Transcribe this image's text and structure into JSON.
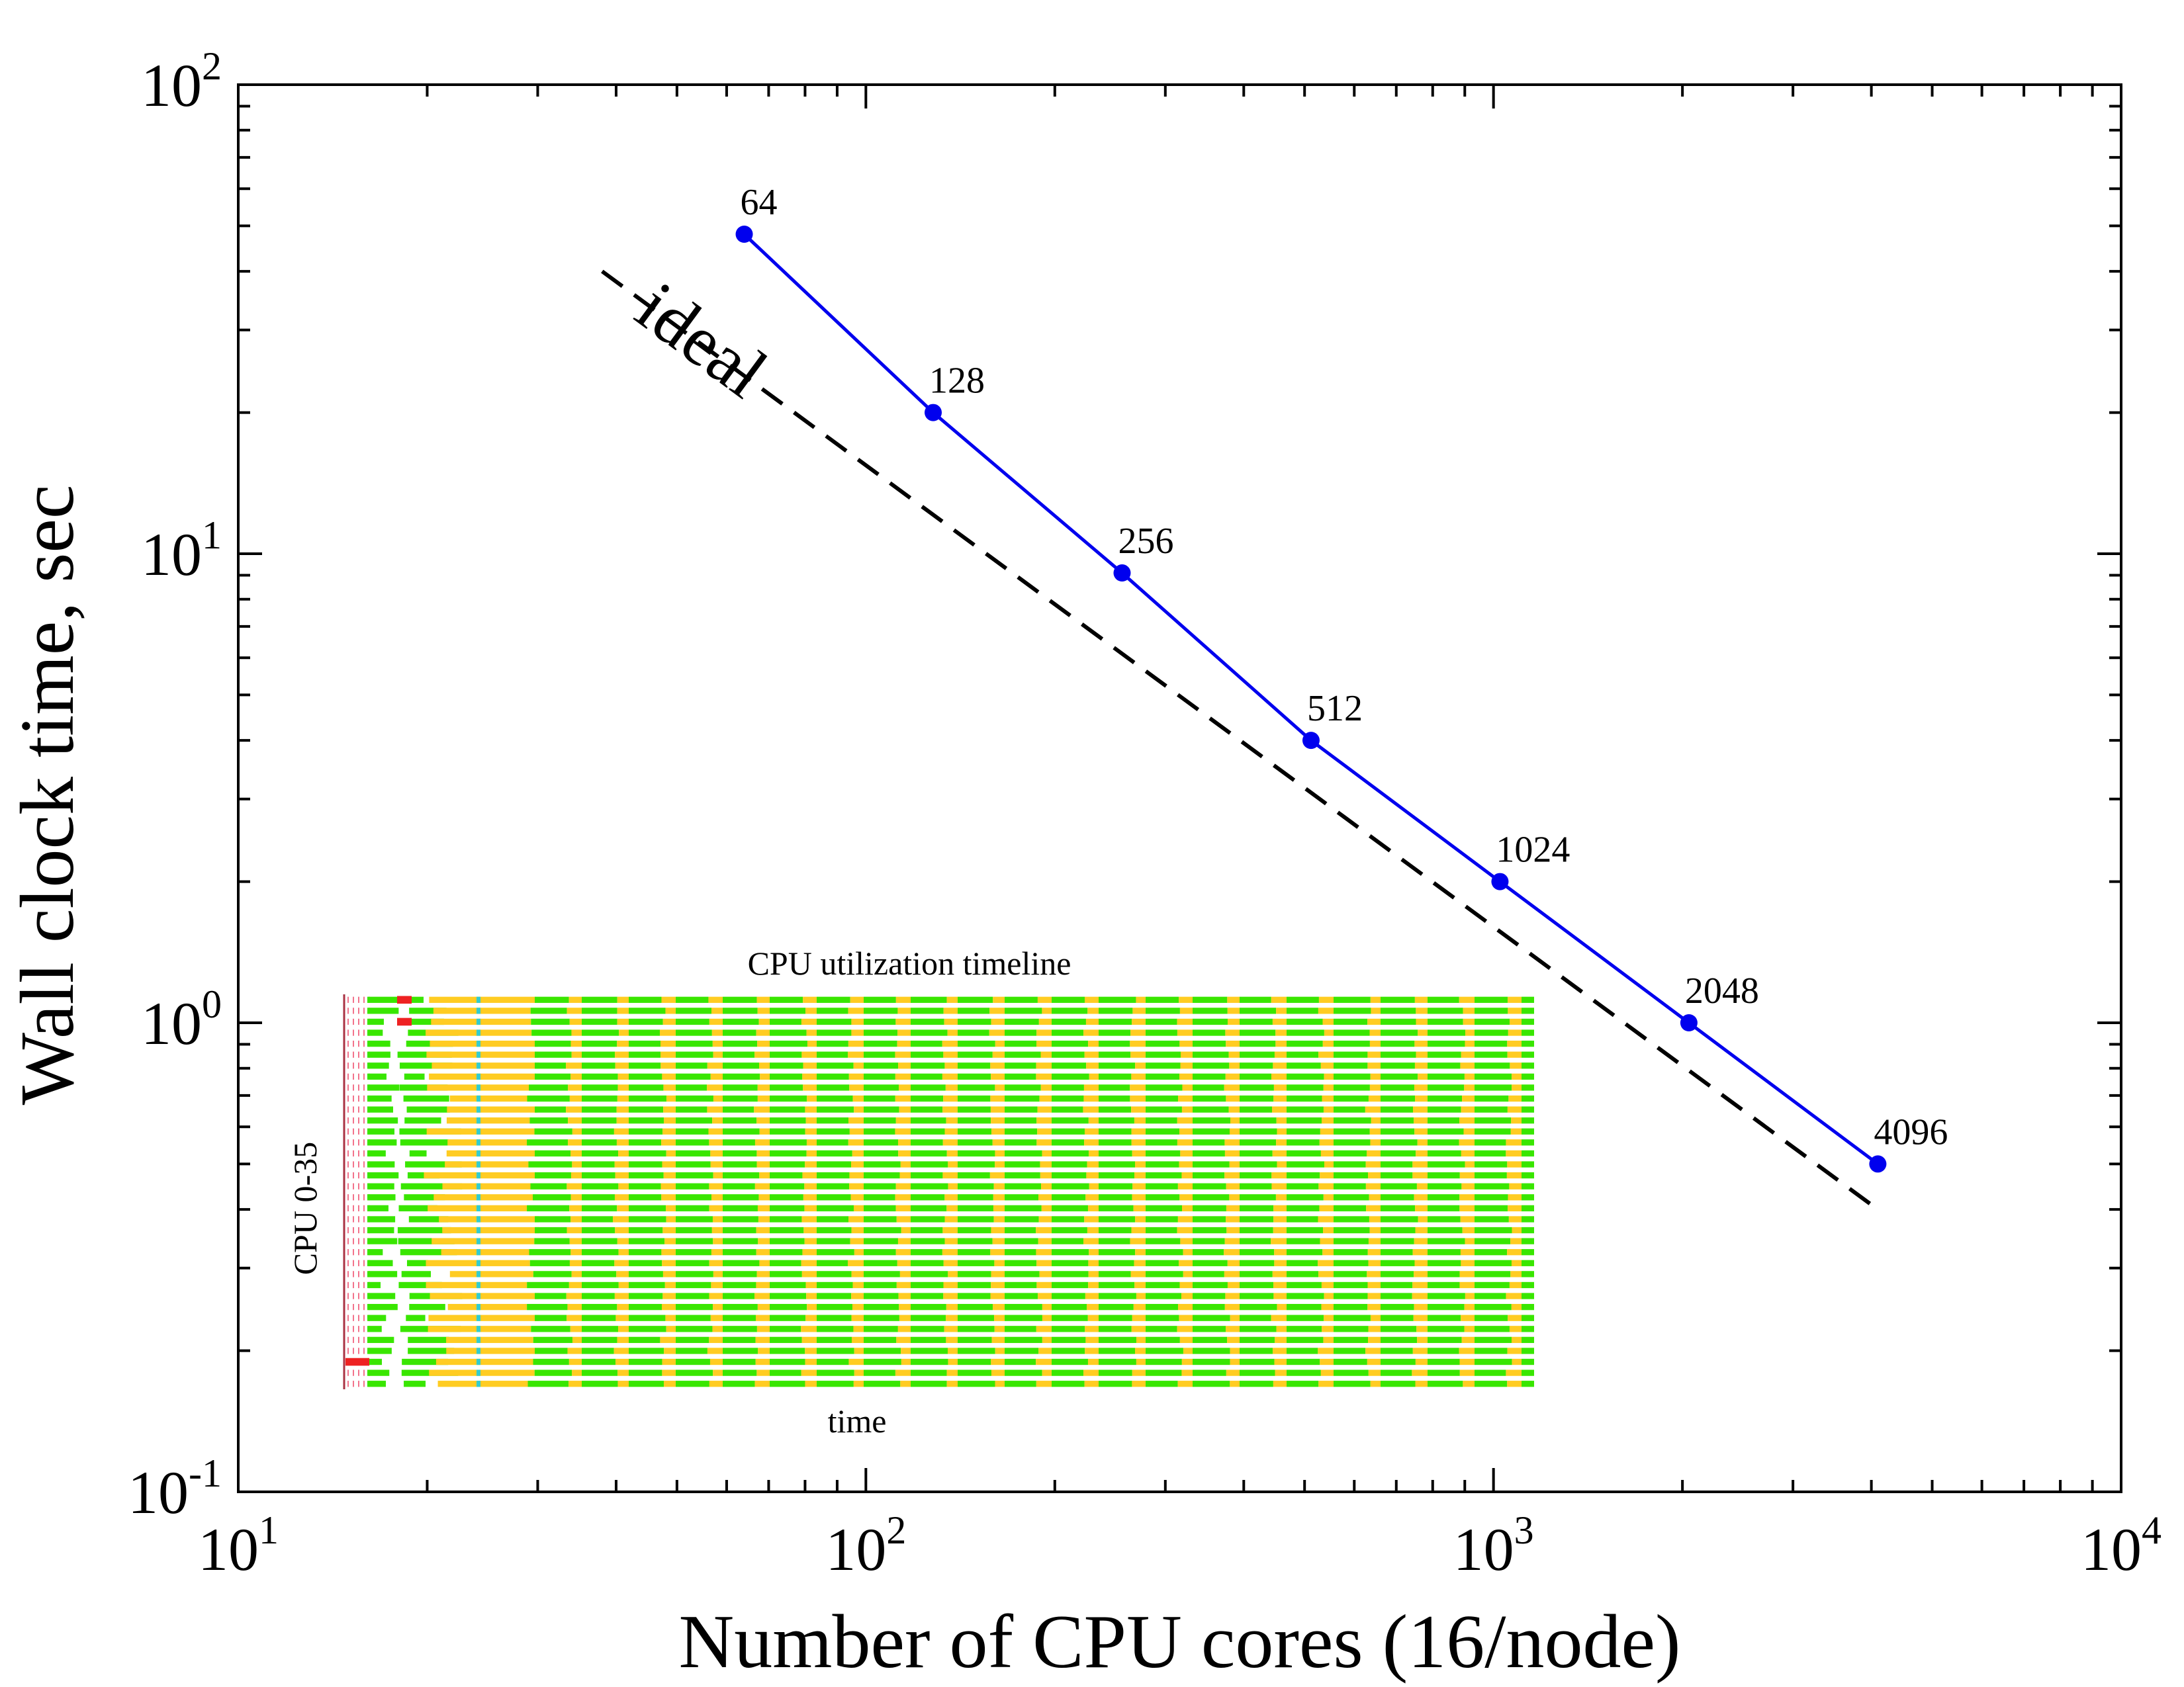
{
  "chart_data": {
    "type": "line",
    "xlabel": "Number of CPU cores (16/node)",
    "ylabel": "Wall clock time, sec",
    "xscale": "log",
    "yscale": "log",
    "xlim": [
      10,
      10000
    ],
    "ylim": [
      0.1,
      100
    ],
    "x_tick_labels": [
      {
        "value": 10,
        "base": "10",
        "exp": "1"
      },
      {
        "value": 100,
        "base": "10",
        "exp": "2"
      },
      {
        "value": 1000,
        "base": "10",
        "exp": "3"
      },
      {
        "value": 10000,
        "base": "10",
        "exp": "4"
      }
    ],
    "y_tick_labels": [
      {
        "value": 0.1,
        "base": "10",
        "exp": "-1"
      },
      {
        "value": 1,
        "base": "10",
        "exp": "0"
      },
      {
        "value": 10,
        "base": "10",
        "exp": "1"
      },
      {
        "value": 100,
        "base": "10",
        "exp": "2"
      }
    ],
    "grid": false,
    "series": [
      {
        "name": "",
        "color": "#0000ee",
        "style": "solid-markers",
        "x": [
          64,
          128,
          256,
          512,
          1024,
          2048,
          4096
        ],
        "y": [
          48,
          20,
          9.1,
          4.0,
          2.0,
          1.0,
          0.5
        ],
        "point_labels": [
          "64",
          "128",
          "256",
          "512",
          "1024",
          "2048",
          "4096"
        ]
      },
      {
        "name": "ideal",
        "color": "#000000",
        "style": "dashed",
        "x": [
          38,
          4096
        ],
        "y": [
          40,
          0.4
        ]
      }
    ],
    "annotations": [
      {
        "text": "ideal",
        "x": 52,
        "y": 26
      }
    ],
    "inset": {
      "title": "CPU utilization timeline",
      "xlabel": "time",
      "ylabel": "CPU 0-35",
      "rows": 36,
      "colors": {
        "busy": "#39e600",
        "overhead": "#ffcc22",
        "idle": "#ffffff",
        "message": "#33cccc",
        "startup": "#ee2222"
      }
    }
  }
}
